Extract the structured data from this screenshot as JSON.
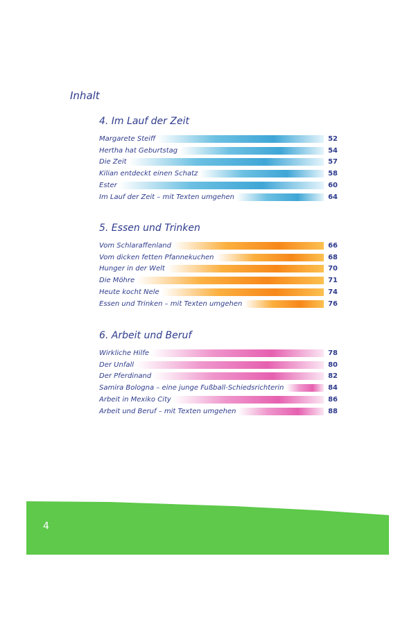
{
  "title": "Inhalt",
  "sections": [
    {
      "heading": "4. Im Lauf der Zeit",
      "color": "#3fa6d6",
      "entries": [
        {
          "label": "Margarete Steiff",
          "page": "52"
        },
        {
          "label": "Hertha hat Geburtstag",
          "page": "54"
        },
        {
          "label": "Die Zeit",
          "page": "57"
        },
        {
          "label": "Kilian entdeckt einen Schatz",
          "page": "58"
        },
        {
          "label": "Ester",
          "page": "60"
        },
        {
          "label": "Im Lauf der Zeit – mit Texten umgehen",
          "page": "64"
        }
      ]
    },
    {
      "heading": "5. Essen und Trinken",
      "color": "#f7881a",
      "entries": [
        {
          "label": "Vom Schlaraffenland",
          "page": "66"
        },
        {
          "label": "Vom dicken fetten Pfannekuchen",
          "page": "68"
        },
        {
          "label": "Hunger in der Welt",
          "page": "70"
        },
        {
          "label": "Die Möhre",
          "page": "71"
        },
        {
          "label": "Heute kocht Nele",
          "page": "74"
        },
        {
          "label": "Essen und Trinken – mit Texten umgehen",
          "page": "76"
        }
      ]
    },
    {
      "heading": "6. Arbeit und Beruf",
      "color": "#e660b0",
      "entries": [
        {
          "label": "Wirkliche Hilfe",
          "page": "78"
        },
        {
          "label": "Der Unfall",
          "page": "80"
        },
        {
          "label": "Der Pferdinand",
          "page": "82"
        },
        {
          "label": "Samira Bologna – eine junge Fußball-Schiedsrichterin",
          "page": "84"
        },
        {
          "label": "Arbeit in Mexiko City",
          "page": "86"
        },
        {
          "label": "Arbeit und Beruf – mit Texten umgehen",
          "page": "88"
        }
      ]
    }
  ],
  "footer": {
    "page_number": "4",
    "band_color": "#5ec94a"
  }
}
